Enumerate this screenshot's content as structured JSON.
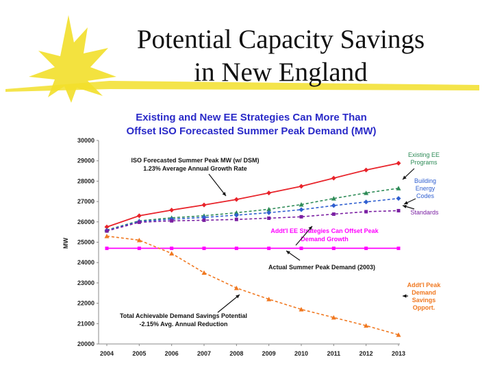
{
  "slide": {
    "title_line1": "Potential Capacity Savings",
    "title_line2": "in New England"
  },
  "colors": {
    "chart_title": "#2a2ac8",
    "iso_forecast": "#e8232a",
    "existing_ee": "#2e8b57",
    "building_codes": "#2f5fd0",
    "standards": "#7a1fa2",
    "actual_peak": "#ff00ff",
    "demand_savings": "#f07820",
    "swoosh": "#f2df2a"
  },
  "chart_data": {
    "type": "line",
    "title_line1": "Existing and New EE Strategies Can More Than",
    "title_line2": "Offset ISO Forecasted Summer Peak Demand (MW)",
    "ylabel": "MW",
    "xlabel": "",
    "ylim": [
      20000,
      30000
    ],
    "yticks": [
      20000,
      21000,
      22000,
      23000,
      24000,
      25000,
      26000,
      27000,
      28000,
      29000,
      30000
    ],
    "x": [
      "2004",
      "2005",
      "2006",
      "2007",
      "2008",
      "2009",
      "2010",
      "2011",
      "2012",
      "2013"
    ],
    "grid": false,
    "series": [
      {
        "key": "iso",
        "name": "ISO Forecasted Summer Peak MW (w/ DSM)",
        "color": "#e8232a",
        "dashed": false,
        "marker": "diamond",
        "values": [
          25750,
          26300,
          26580,
          26830,
          27100,
          27420,
          27750,
          28150,
          28550,
          28880
        ]
      },
      {
        "key": "existing",
        "name": "Existing EE Programs",
        "color": "#2e8b57",
        "dashed": true,
        "marker": "triangle",
        "values": [
          25600,
          26050,
          26200,
          26300,
          26450,
          26620,
          26850,
          27150,
          27420,
          27650
        ]
      },
      {
        "key": "building",
        "name": "Building Energy Codes",
        "color": "#2f5fd0",
        "dashed": true,
        "marker": "diamond",
        "values": [
          25580,
          26020,
          26130,
          26220,
          26330,
          26450,
          26600,
          26800,
          26980,
          27150
        ]
      },
      {
        "key": "standards",
        "name": "Standards",
        "color": "#7a1fa2",
        "dashed": true,
        "marker": "square",
        "values": [
          25550,
          25980,
          26050,
          26080,
          26120,
          26180,
          26250,
          26380,
          26500,
          26550
        ]
      },
      {
        "key": "actual",
        "name": "Actual Summer Peak Demand (2003)",
        "color": "#ff00ff",
        "dashed": false,
        "marker": "square",
        "values": [
          24700,
          24700,
          24700,
          24700,
          24700,
          24700,
          24700,
          24700,
          24700,
          24700
        ]
      },
      {
        "key": "savings",
        "name": "Addt'l Peak Demand Savings Opport.",
        "color": "#f07820",
        "dashed": true,
        "marker": "triangle",
        "values": [
          25300,
          25100,
          24450,
          23500,
          22750,
          22200,
          21700,
          21300,
          20900,
          20450
        ]
      }
    ],
    "annotations": {
      "iso_line1": "ISO Forecasted Summer Peak MW (w/ DSM)",
      "iso_line2": "1.23% Average Annual Growth Rate",
      "addtl_line1": "Addt'l EE Strategies Can Offset Peak",
      "addtl_line2": "Demand Growth",
      "actual": "Actual Summer Peak Demand (2003)",
      "total_line1": "Total Achievable Demand Savings Potential",
      "total_line2": "-2.15% Avg. Annual Reduction"
    },
    "legend": {
      "existing": [
        "Existing EE",
        "Programs"
      ],
      "building": [
        "Building",
        "Energy",
        "Codes"
      ],
      "standards": [
        "Standards"
      ],
      "savings": [
        "Addt'l Peak",
        "Demand",
        "Savings",
        "Opport."
      ]
    }
  }
}
